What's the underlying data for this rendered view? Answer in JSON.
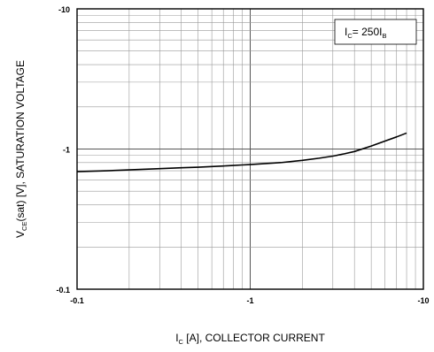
{
  "chart_data": {
    "type": "line",
    "xscale": "log",
    "yscale": "log",
    "xlim": [
      -0.1,
      -10
    ],
    "ylim": [
      -0.1,
      -10
    ],
    "x_ticks": [
      "-0.1",
      "-1",
      "-10"
    ],
    "y_ticks": [
      "-10",
      "-1",
      "-0.1"
    ],
    "xlabel": {
      "prefix": "I",
      "sub": "C",
      "suffix": " [A], COLLECTOR CURRENT"
    },
    "ylabel": {
      "prefix": "V",
      "sub": "CE",
      "suffix": "(sat) [V], SATURATION VOLTAGE"
    },
    "legend": {
      "prefix": "I",
      "sub1": "C",
      "middle": "= 250I",
      "sub2": "B",
      "position": "top-right"
    },
    "grid": true,
    "series": [
      {
        "x": [
          -0.1,
          -0.15,
          -0.2,
          -0.3,
          -0.4,
          -0.5,
          -0.6,
          -0.7,
          -0.8,
          -0.9,
          -1.0,
          -1.5,
          -2.0,
          -2.5,
          -3.0,
          -3.5,
          -4.0,
          -5.0,
          -6.0,
          -7.0,
          -8.0
        ],
        "y": [
          -0.69,
          -0.7,
          -0.71,
          -0.725,
          -0.735,
          -0.742,
          -0.75,
          -0.757,
          -0.764,
          -0.77,
          -0.775,
          -0.8,
          -0.83,
          -0.86,
          -0.89,
          -0.925,
          -0.96,
          -1.05,
          -1.14,
          -1.22,
          -1.3
        ]
      }
    ],
    "colors": {
      "line": "#000000",
      "grid": "#999999",
      "frame": "#000000"
    }
  }
}
